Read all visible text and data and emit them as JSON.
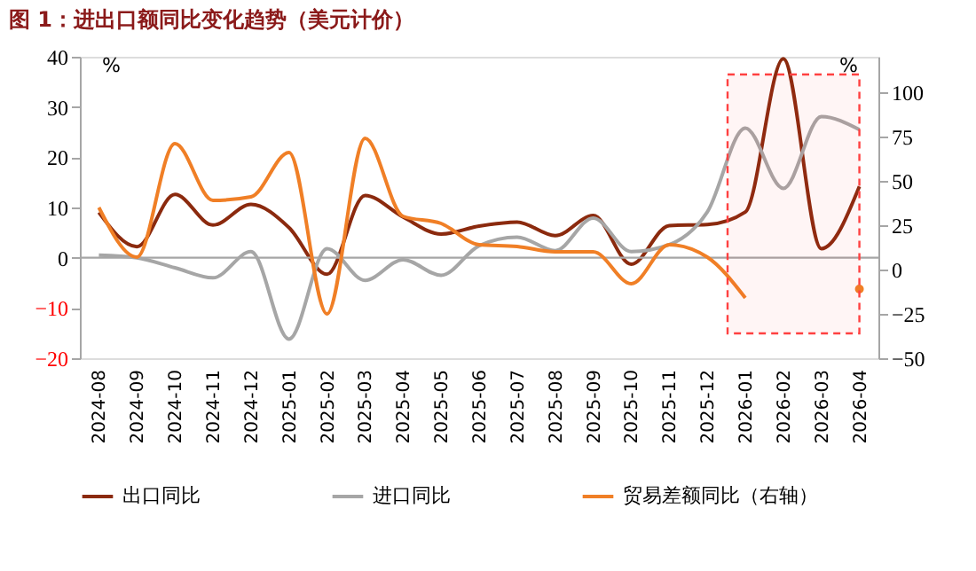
{
  "chart_data": {
    "type": "line",
    "title": "图 1：进出口额同比变化趋势（美元计价）",
    "ylabel": "%",
    "y2label": "%",
    "categories": [
      "2024-08",
      "2024-09",
      "2024-10",
      "2024-11",
      "2024-12",
      "2025-01",
      "2025-02",
      "2025-03",
      "2025-04",
      "2025-05",
      "2025-06",
      "2025-07",
      "2025-08",
      "2025-09",
      "2025-10",
      "2025-11",
      "2025-12",
      "2026-01",
      "2026-02",
      "2026-03",
      "2026-04"
    ],
    "series": [
      {
        "name": "出口同比",
        "color": "#8b2a0e",
        "values": [
          9,
          2.2,
          12.6,
          6.5,
          10.6,
          6,
          -3.3,
          12.4,
          8.1,
          4.7,
          6.3,
          7.1,
          4.4,
          8.4,
          -1.3,
          6.4,
          6.6,
          9.1,
          39.6,
          1.8,
          14.2
        ]
      },
      {
        "name": "进口同比",
        "color": "#a6a6a6",
        "values": [
          0.5,
          0,
          -2,
          -4,
          1.2,
          -16.2,
          1.8,
          -4.5,
          -0.4,
          -3.5,
          2.4,
          4.1,
          1.4,
          7.9,
          1.2,
          2.6,
          9.1,
          25.8,
          13.8,
          28.1,
          25.5
        ]
      },
      {
        "name": "贸易差额同比（右轴）",
        "color": "#f07f26",
        "axis": "y2",
        "values": [
          35,
          7,
          71,
          39,
          41,
          66,
          -25,
          74,
          30,
          26,
          14,
          13,
          10,
          10,
          -8,
          14,
          7,
          -16,
          null,
          null,
          -11
        ]
      }
    ],
    "ylim": [
      -20,
      40
    ],
    "yticks": [
      -20,
      -10,
      0,
      10,
      20,
      30,
      40
    ],
    "y2lim": [
      -50,
      120
    ],
    "y2ticks": [
      -50,
      -25,
      0,
      25,
      50,
      75,
      100
    ],
    "ref_lines": [
      {
        "axis": "y",
        "value": 0,
        "color": "#a6a6a6"
      }
    ],
    "bands": [
      {
        "axis": "x",
        "from": "2026-01",
        "to": "2026-04",
        "color": "#ff4040"
      }
    ],
    "grid": false,
    "legend": "bottom"
  }
}
